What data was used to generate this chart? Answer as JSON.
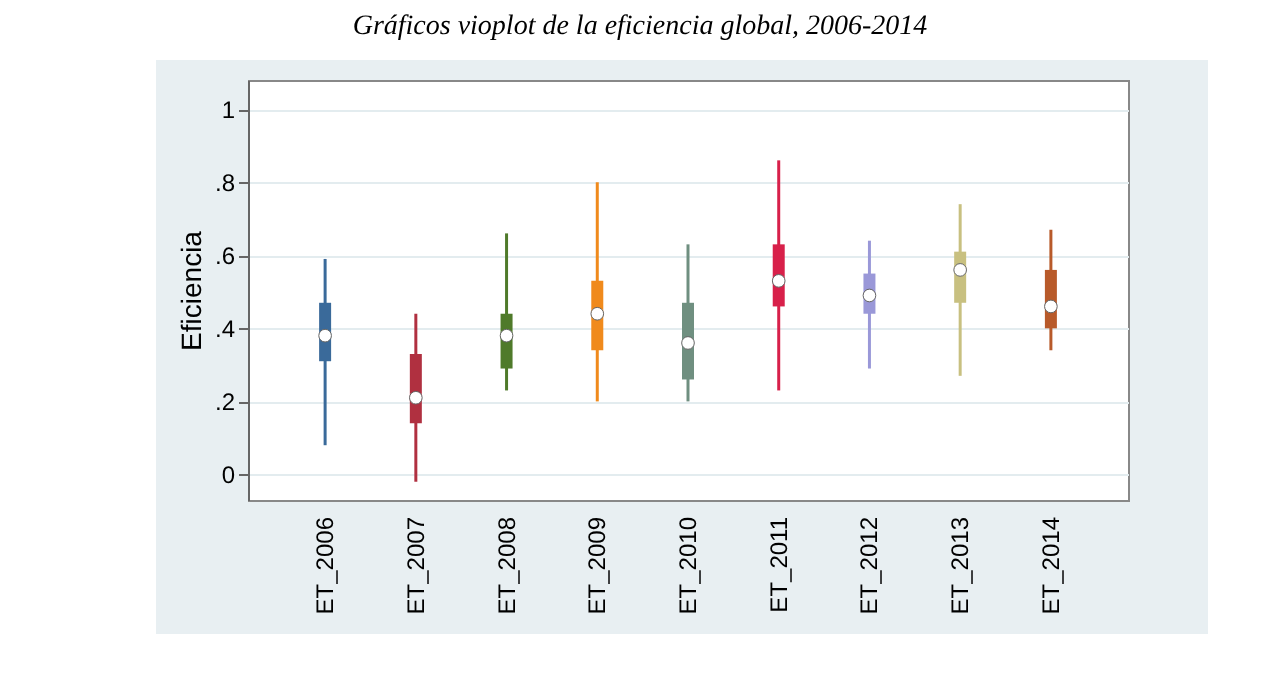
{
  "chart_data": {
    "type": "box",
    "title": "Gráficos vioplot de la eficiencia global, 2006-2014",
    "ylabel": "Eficiencia",
    "categories": [
      "ET_2006",
      "ET_2007",
      "ET_2008",
      "ET_2009",
      "ET_2010",
      "ET_2011",
      "ET_2012",
      "ET_2013",
      "ET_2014"
    ],
    "colors": [
      "#3a6a9a",
      "#b03040",
      "#4f7a2a",
      "#f08a1c",
      "#6f8f80",
      "#d8204a",
      "#9a98d8",
      "#c8c080",
      "#b85a2a"
    ],
    "boxes": [
      {
        "low": 0.08,
        "q1": 0.31,
        "median": 0.38,
        "q3": 0.47,
        "high": 0.59
      },
      {
        "low": -0.02,
        "q1": 0.14,
        "median": 0.21,
        "q3": 0.33,
        "high": 0.44
      },
      {
        "low": 0.23,
        "q1": 0.29,
        "median": 0.38,
        "q3": 0.44,
        "high": 0.66
      },
      {
        "low": 0.2,
        "q1": 0.34,
        "median": 0.44,
        "q3": 0.53,
        "high": 0.8
      },
      {
        "low": 0.2,
        "q1": 0.26,
        "median": 0.36,
        "q3": 0.47,
        "high": 0.63
      },
      {
        "low": 0.23,
        "q1": 0.46,
        "median": 0.53,
        "q3": 0.63,
        "high": 0.86
      },
      {
        "low": 0.29,
        "q1": 0.44,
        "median": 0.49,
        "q3": 0.55,
        "high": 0.64
      },
      {
        "low": 0.27,
        "q1": 0.47,
        "median": 0.56,
        "q3": 0.61,
        "high": 0.74
      },
      {
        "low": 0.34,
        "q1": 0.4,
        "median": 0.46,
        "q3": 0.56,
        "high": 0.67
      }
    ],
    "ylim": [
      -0.07,
      1.08
    ],
    "yticks": [
      {
        "value": 0,
        "label": "0"
      },
      {
        "value": 0.2,
        "label": ".2"
      },
      {
        "value": 0.4,
        "label": ".4"
      },
      {
        "value": 0.6,
        "label": ".6"
      },
      {
        "value": 0.8,
        "label": ".8"
      },
      {
        "value": 1,
        "label": "1"
      }
    ],
    "grid": "y"
  }
}
